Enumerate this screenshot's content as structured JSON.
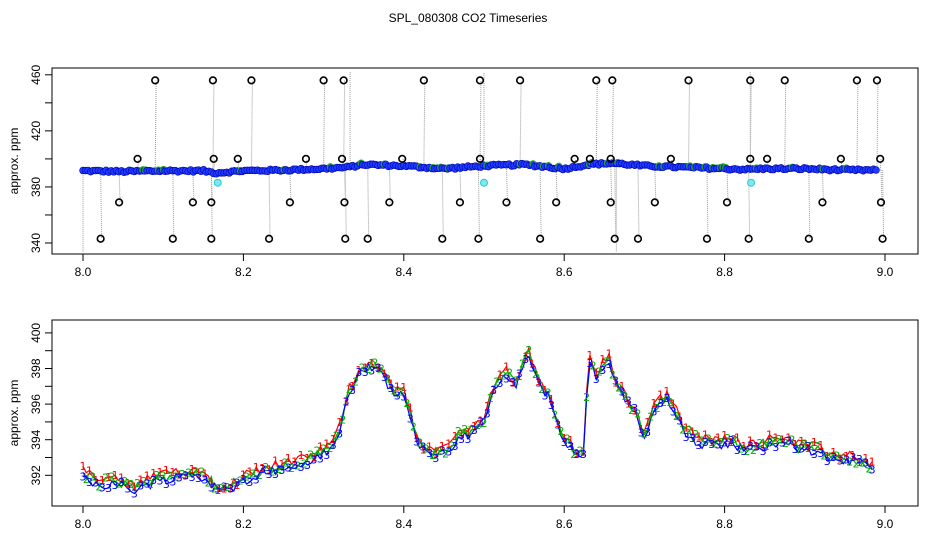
{
  "title": "SPL_080308  CO2 Timeseries",
  "chart_data": [
    {
      "type": "scatter",
      "panel": "top",
      "xlabel": "",
      "ylabel": "approx. ppm",
      "xlim": [
        8.0,
        9.0
      ],
      "ylim": [
        335,
        462
      ],
      "xticks": [
        8.0,
        8.2,
        8.4,
        8.6,
        8.8,
        9.0
      ],
      "xtick_labels": [
        "8.0",
        "8.2",
        "8.4",
        "8.6",
        "8.8",
        "9.0"
      ],
      "yticks": [
        340,
        380,
        420,
        460
      ],
      "ytick_labels": [
        "340",
        "380",
        "420",
        "460"
      ],
      "baseline": [
        [
          8.0,
          391.5
        ],
        [
          8.05,
          391
        ],
        [
          8.1,
          391.5
        ],
        [
          8.15,
          391.5
        ],
        [
          8.165,
          390
        ],
        [
          8.2,
          391.5
        ],
        [
          8.25,
          392
        ],
        [
          8.3,
          393
        ],
        [
          8.33,
          394
        ],
        [
          8.35,
          396
        ],
        [
          8.4,
          395
        ],
        [
          8.45,
          393
        ],
        [
          8.5,
          395
        ],
        [
          8.55,
          396
        ],
        [
          8.6,
          393
        ],
        [
          8.63,
          396
        ],
        [
          8.66,
          397
        ],
        [
          8.7,
          395
        ],
        [
          8.75,
          394
        ],
        [
          8.8,
          393
        ],
        [
          8.83,
          392.5
        ],
        [
          8.85,
          393
        ],
        [
          8.9,
          393
        ],
        [
          8.95,
          392
        ],
        [
          8.99,
          392
        ]
      ],
      "outliers_high": [
        8.09,
        8.162,
        8.21,
        8.3,
        8.325,
        8.425,
        8.495,
        8.545,
        8.64,
        8.66,
        8.755,
        8.832,
        8.875,
        8.965,
        8.99
      ],
      "outliers_low": [
        8.022,
        8.112,
        8.16,
        8.232,
        8.327,
        8.355,
        8.448,
        8.493,
        8.57,
        8.663,
        8.692,
        8.778,
        8.83,
        8.905,
        8.997
      ],
      "outliers_mid_high": [
        8.068,
        8.163,
        8.193,
        8.278,
        8.323,
        8.398,
        8.495,
        8.613,
        8.632,
        8.658,
        8.733,
        8.832,
        8.853,
        8.945,
        8.994
      ],
      "outliers_mid_low": [
        8.045,
        8.137,
        8.16,
        8.258,
        8.326,
        8.382,
        8.47,
        8.528,
        8.59,
        8.658,
        8.713,
        8.803,
        8.922,
        8.995
      ],
      "cyan_points": [
        [
          8.168,
          383
        ],
        [
          8.5,
          383
        ],
        [
          8.833,
          383
        ]
      ]
    },
    {
      "type": "line",
      "panel": "bottom",
      "xlabel": "",
      "ylabel": "approx. ppm",
      "xlim": [
        8.0,
        9.0
      ],
      "ylim": [
        390.5,
        400.5
      ],
      "xticks": [
        8.0,
        8.2,
        8.4,
        8.6,
        8.8,
        9.0
      ],
      "xtick_labels": [
        "8.0",
        "8.2",
        "8.4",
        "8.6",
        "8.8",
        "9.0"
      ],
      "yticks": [
        392,
        394,
        396,
        398,
        400
      ],
      "ytick_labels": [
        "392",
        "394",
        "396",
        "398",
        "400"
      ],
      "series": [
        {
          "name": "1",
          "color": "#ff0000",
          "marker": "1"
        },
        {
          "name": "2",
          "color": "#00b000",
          "marker": "2"
        },
        {
          "name": "3",
          "color": "#0000ff",
          "marker": "3"
        }
      ],
      "profile": [
        [
          8.0,
          392
        ],
        [
          8.02,
          391.5
        ],
        [
          8.04,
          391.6
        ],
        [
          8.06,
          391.2
        ],
        [
          8.08,
          391.5
        ],
        [
          8.1,
          391.8
        ],
        [
          8.12,
          392
        ],
        [
          8.14,
          392.1
        ],
        [
          8.16,
          391.6
        ],
        [
          8.17,
          391.1
        ],
        [
          8.19,
          391.4
        ],
        [
          8.21,
          392
        ],
        [
          8.23,
          392.3
        ],
        [
          8.25,
          392.4
        ],
        [
          8.27,
          392.6
        ],
        [
          8.29,
          393
        ],
        [
          8.31,
          393.5
        ],
        [
          8.32,
          394.5
        ],
        [
          8.33,
          396.5
        ],
        [
          8.345,
          397.8
        ],
        [
          8.36,
          398.2
        ],
        [
          8.375,
          397.5
        ],
        [
          8.39,
          396.5
        ],
        [
          8.4,
          396.5
        ],
        [
          8.41,
          395
        ],
        [
          8.42,
          393.5
        ],
        [
          8.44,
          393.2
        ],
        [
          8.46,
          393.5
        ],
        [
          8.47,
          394.4
        ],
        [
          8.48,
          394.2
        ],
        [
          8.5,
          395
        ],
        [
          8.51,
          396.5
        ],
        [
          8.525,
          397.8
        ],
        [
          8.54,
          397
        ],
        [
          8.555,
          399
        ],
        [
          8.565,
          397.5
        ],
        [
          8.58,
          396.5
        ],
        [
          8.59,
          395
        ],
        [
          8.6,
          394
        ],
        [
          8.615,
          393
        ],
        [
          8.625,
          393.3
        ],
        [
          8.63,
          398.5
        ],
        [
          8.64,
          397.5
        ],
        [
          8.655,
          398.5
        ],
        [
          8.665,
          397
        ],
        [
          8.68,
          396
        ],
        [
          8.69,
          395.5
        ],
        [
          8.7,
          394
        ],
        [
          8.71,
          395.8
        ],
        [
          8.73,
          396.3
        ],
        [
          8.75,
          394.5
        ],
        [
          8.77,
          393.8
        ],
        [
          8.79,
          393.8
        ],
        [
          8.81,
          393.8
        ],
        [
          8.83,
          393.5
        ],
        [
          8.85,
          393.7
        ],
        [
          8.87,
          394
        ],
        [
          8.89,
          393.6
        ],
        [
          8.91,
          393.4
        ],
        [
          8.93,
          393
        ],
        [
          8.95,
          392.9
        ],
        [
          8.97,
          392.7
        ],
        [
          8.985,
          392.4
        ]
      ]
    }
  ]
}
